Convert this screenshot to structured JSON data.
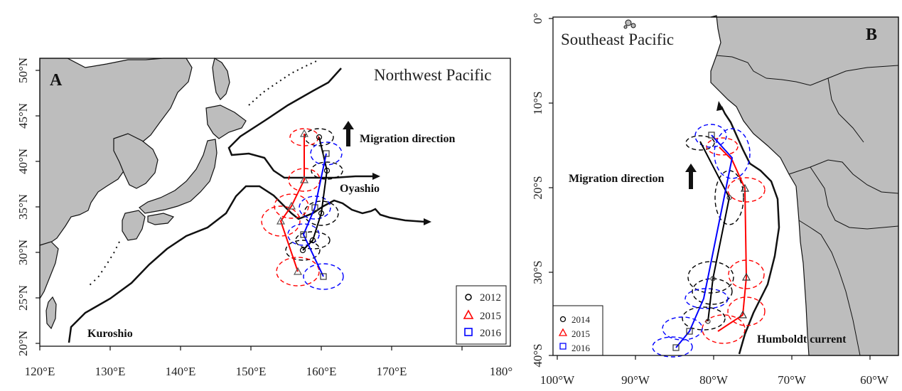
{
  "panel_a": {
    "label": "A",
    "region_title": "Northwest Pacific",
    "x_ticks": [
      "120°E",
      "130°E",
      "140°E",
      "150°E",
      "160°E",
      "170°E",
      "180°"
    ],
    "y_ticks": [
      "20°N",
      "25°N",
      "30°N",
      "35°N",
      "40°N",
      "45°N",
      "50°N"
    ],
    "migration_label": "Migration direction",
    "current_labels": {
      "kuroshio": "Kuroshio",
      "oyashio": "Oyashio"
    },
    "legend": [
      {
        "label": "2012",
        "marker": "circle",
        "color": "#000000"
      },
      {
        "label": "2015",
        "marker": "triangle",
        "color": "#ff0000"
      },
      {
        "label": "2016",
        "marker": "square",
        "color": "#0000ff"
      }
    ]
  },
  "panel_b": {
    "label": "B",
    "region_title": "Southeast Pacific",
    "x_ticks": [
      "100°W",
      "90°W",
      "80°W",
      "70°W",
      "60°W"
    ],
    "y_ticks": [
      "0°",
      "10°S",
      "20°S",
      "30°S",
      "40°S"
    ],
    "migration_label": "Migration direction",
    "current_labels": {
      "humboldt": "Humboldt current"
    },
    "legend": [
      {
        "label": "2014",
        "marker": "circle",
        "color": "#000000"
      },
      {
        "label": "2015",
        "marker": "triangle",
        "color": "#ff0000"
      },
      {
        "label": "2016",
        "marker": "square",
        "color": "#0000ff"
      }
    ]
  },
  "colors": {
    "land": "#bdbdbd",
    "coast": "#111111",
    "y2012": "#000000",
    "y2015": "#ff0000",
    "y2016": "#0000ff"
  }
}
